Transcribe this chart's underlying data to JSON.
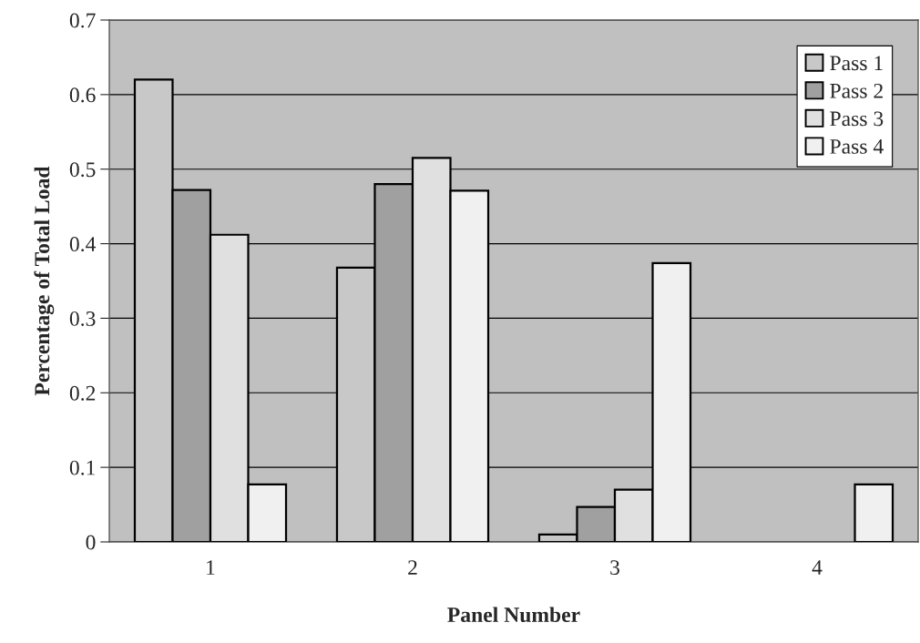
{
  "chart_data": {
    "type": "bar",
    "xlabel": "Panel Number",
    "ylabel": "Percentage of Total Load",
    "categories": [
      "1",
      "2",
      "3",
      "4"
    ],
    "series": [
      {
        "name": "Pass 1",
        "color": "#c8c8c8",
        "values": [
          0.62,
          0.368,
          0.01,
          null
        ]
      },
      {
        "name": "Pass 2",
        "color": "#a0a0a0",
        "values": [
          0.472,
          0.48,
          0.047,
          null
        ]
      },
      {
        "name": "Pass 3",
        "color": "#e0e0e0",
        "values": [
          0.412,
          0.515,
          0.07,
          null
        ]
      },
      {
        "name": "Pass 4",
        "color": "#f0f0f0",
        "values": [
          0.077,
          0.471,
          0.374,
          0.077
        ]
      }
    ],
    "ylim": [
      0,
      0.7
    ],
    "yticks": [
      0,
      0.1,
      0.2,
      0.3,
      0.4,
      0.5,
      0.6,
      0.7
    ],
    "grid": "y",
    "legend": "top right"
  }
}
